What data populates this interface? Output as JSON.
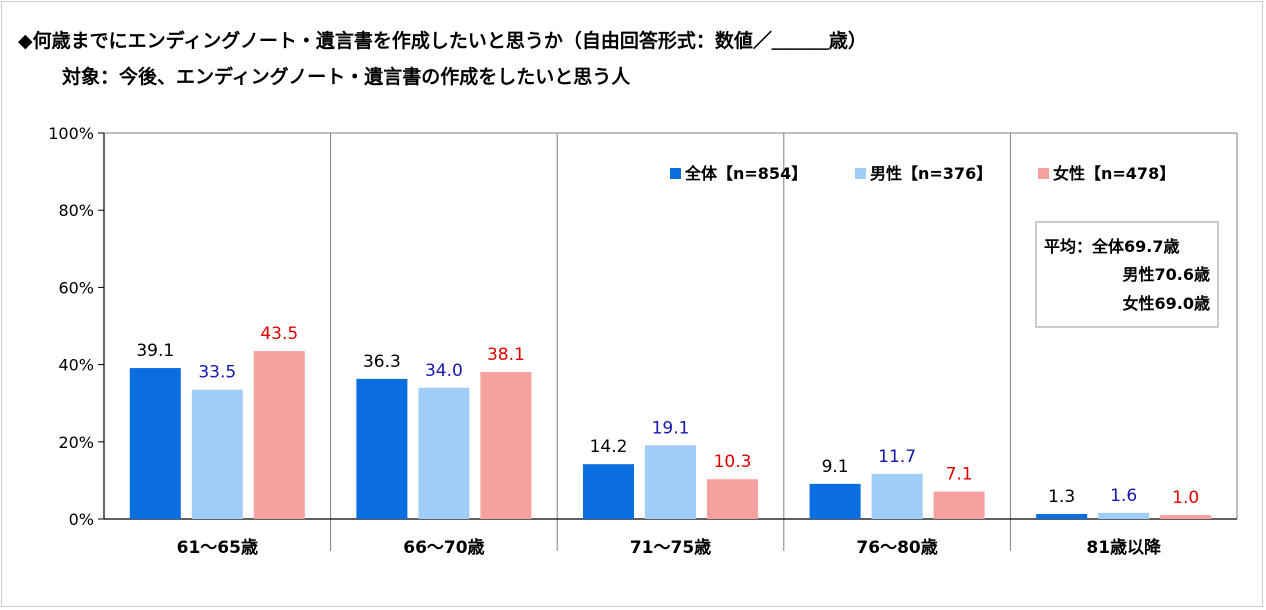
{
  "chart_data": {
    "type": "bar",
    "title": "◆何歳までにエンディングノート・遺言書を作成したいと思うか（自由回答形式：数値／＿＿＿歳）",
    "subtitle": "対象：今後、エンディングノート・遺言書の作成をしたいと思う人",
    "xlabel": "",
    "ylabel": "",
    "ylim": [
      0,
      100
    ],
    "yticks": [
      "0%",
      "20%",
      "40%",
      "60%",
      "80%",
      "100%"
    ],
    "categories": [
      "61～65歳",
      "66～70歳",
      "71～75歳",
      "76～80歳",
      "81歳以降"
    ],
    "series": [
      {
        "name": "全体【n=854】",
        "color": "#0a6ee0",
        "label_color": "#000000",
        "values": [
          39.1,
          36.3,
          14.2,
          9.1,
          1.3
        ]
      },
      {
        "name": "男性【n=376】",
        "color": "#a0cdf7",
        "label_color": "#1515b0",
        "values": [
          33.5,
          34.0,
          19.1,
          11.7,
          1.6
        ]
      },
      {
        "name": "女性【n=478】",
        "color": "#f7a0a0",
        "label_color": "#e00000",
        "values": [
          43.5,
          38.1,
          10.3,
          7.1,
          1.0
        ]
      }
    ],
    "legend_position": "top-right",
    "grid": false,
    "annotation": {
      "lines": [
        "平均：全体69.7歳",
        "男性70.6歳",
        "女性69.0歳"
      ]
    }
  }
}
